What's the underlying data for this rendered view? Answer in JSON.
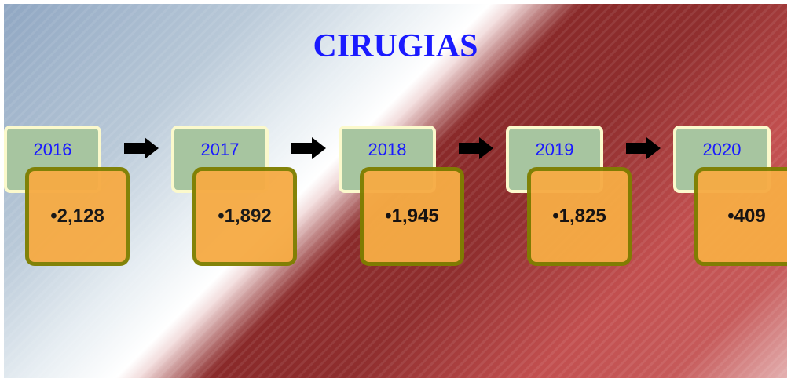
{
  "title": "CIRUGIAS",
  "items": [
    {
      "year": "2016",
      "value": "•2,128"
    },
    {
      "year": "2017",
      "value": "•1,892"
    },
    {
      "year": "2018",
      "value": "•1,945"
    },
    {
      "year": "2019",
      "value": "•1,825"
    },
    {
      "year": "2020",
      "value": "•409"
    }
  ]
}
